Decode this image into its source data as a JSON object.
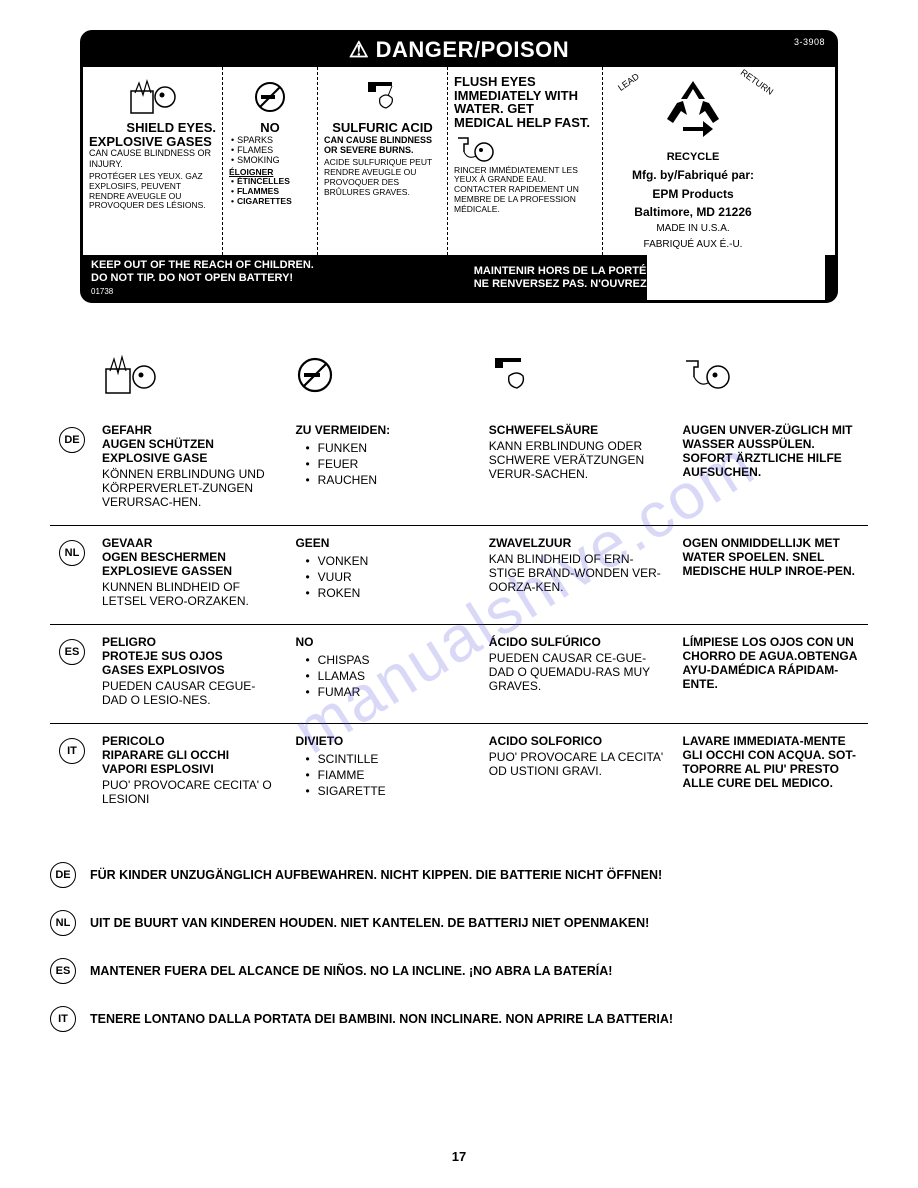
{
  "header": {
    "title": "⚠ DANGER/POISON",
    "code_top": "3-3908"
  },
  "label": {
    "col1": {
      "title1": "SHIELD EYES.",
      "title2": "EXPLOSIVE GASES",
      "en": "CAN CAUSE BLINDNESS OR INJURY.",
      "fr": "PROTÉGER LES YEUX. GAZ EXPLOSIFS, PEUVENT RENDRE AVEUGLE OU PROVOQUER DES LÉSIONS."
    },
    "col2": {
      "title": "NO",
      "items_en": [
        "SPARKS",
        "FLAMES",
        "SMOKING"
      ],
      "fr_head": "ÉLOIGNER",
      "items_fr": [
        "ÉTINCELLES",
        "FLAMMES",
        "CIGARETTES"
      ]
    },
    "col3": {
      "title": "SULFURIC ACID",
      "en": "CAN CAUSE BLINDNESS OR SEVERE BURNS.",
      "fr": "ACIDE SULFURIQUE PEUT RENDRE AVEUGLE OU PROVOQUER DES BRÛLURES GRAVES."
    },
    "col4": {
      "title": "FLUSH EYES IMMEDIATELY WITH WATER. GET MEDICAL HELP FAST.",
      "fr": "RINCER IMMÉDIATEMENT LES YEUX À GRANDE EAU. CONTACTER RAPIDEMENT UN MEMBRE DE LA PROFESSION MÉDICALE."
    },
    "col5": {
      "recycle": "RECYCLE",
      "lead": "LEAD",
      "return": "RETURN",
      "mfg1": "Mfg. by/Fabriqué par:",
      "mfg2": "EPM Products",
      "mfg3": "Baltimore, MD 21226",
      "made1": "MADE IN U.S.A.",
      "made2": "FABRIQUÉ AUX É.-U."
    },
    "footer": {
      "left1": "KEEP OUT OF THE REACH OF CHILDREN.",
      "left2": "DO NOT TIP. DO NOT OPEN BATTERY!",
      "right1": "MAINTENIR HORS DE LA PORTÉE D'ENFANTS.",
      "right2": "NE RENVERSEZ PAS. N'OUVREZ PAS LA BATTERIE!",
      "code": "01738"
    }
  },
  "trans": {
    "langs": [
      "DE",
      "NL",
      "ES",
      "IT"
    ],
    "rows": [
      {
        "lang": "DE",
        "c1_bold": [
          "GEFAHR",
          "AUGEN SCHÜTZEN",
          "EXPLOSIVE GASE"
        ],
        "c1_txt": "KÖNNEN ERBLINDUNG UND KÖRPERVERLET-ZUNGEN VERURSAC-HEN.",
        "c2_head": "ZU VERMEIDEN:",
        "c2_items": [
          "FUNKEN",
          "FEUER",
          "RAUCHEN"
        ],
        "c3_head": "SCHWEFELSÄURE",
        "c3_txt": "KANN ERBLINDUNG ODER SCHWERE VERÄTZUNGEN VERUR-SACHEN.",
        "c4_bold": "AUGEN UNVER-ZÜGLICH MIT WASSER AUSSPÜLEN. SOFORT ÄRZTLICHE HILFE AUFSUCHEN."
      },
      {
        "lang": "NL",
        "c1_bold": [
          "GEVAAR",
          "OGEN BESCHERMEN",
          "EXPLOSIEVE GASSEN"
        ],
        "c1_txt": "KUNNEN BLINDHEID OF LETSEL VERO-ORZAKEN.",
        "c2_head": "GEEN",
        "c2_items": [
          "VONKEN",
          "VUUR",
          "ROKEN"
        ],
        "c3_head": "ZWAVELZUUR",
        "c3_txt": "KAN BLINDHEID OF ERN-STIGE BRAND-WONDEN VER-OORZA-KEN.",
        "c4_bold": "OGEN ONMIDDELLIJK MET WATER SPOELEN. SNEL MEDISCHE HULP INROE-PEN."
      },
      {
        "lang": "ES",
        "c1_bold": [
          "PELIGRO",
          "PROTEJE SUS OJOS",
          "GASES EXPLOSIVOS"
        ],
        "c1_txt": "PUEDEN CAUSAR CEGUE-DAD O LESIO-NES.",
        "c2_head": "NO",
        "c2_items": [
          "CHISPAS",
          "LLAMAS",
          "FUMAR"
        ],
        "c3_head": "ÁCIDO SULFÚRICO",
        "c3_txt": "PUEDEN CAUSAR CE-GUE-DAD O QUEMADU-RAS MUY GRAVES.",
        "c4_bold": "LÍMPIESE LOS OJOS CON UN CHORRO DE AGUA.OBTENGA AYU-DAMÉDICA RÁPIDAM-ENTE."
      },
      {
        "lang": "IT",
        "c1_bold": [
          "PERICOLO",
          "RIPARARE GLI OCCHI",
          "VAPORI ESPLOSIVI"
        ],
        "c1_txt": "PUO' PROVOCARE CECITA' O LESIONI",
        "c2_head": "DIVIETO",
        "c2_items": [
          "SCINTILLE",
          "FIAMME",
          "SIGARETTE"
        ],
        "c3_head": "ACIDO SOLFORICO",
        "c3_txt": "PUO' PROVOCARE LA CECITA' OD USTIONI GRAVI.",
        "c4_bold": "LAVARE IMMEDIATA-MENTE GLI OCCHI CON ACQUA. SOT-TOPORRE AL PIU' PRESTO ALLE CURE DEL MEDICO."
      }
    ]
  },
  "bottom": [
    {
      "lang": "DE",
      "text": "FÜR KINDER UNZUGÄNGLICH AUFBEWAHREN. NICHT KIPPEN. DIE BATTERIE NICHT ÖFFNEN!"
    },
    {
      "lang": "NL",
      "text": "UIT DE BUURT VAN KINDEREN HOUDEN. NIET KANTELEN. DE BATTERIJ NIET OPENMAKEN!"
    },
    {
      "lang": "ES",
      "text": "MANTENER  FUERA DEL ALCANCE DE NIÑOS. NO LA INCLINE. ¡NO ABRA LA BATERÍA!"
    },
    {
      "lang": "IT",
      "text": "TENERE LONTANO DALLA PORTATA DEI BAMBINI. NON INCLINARE. NON APRIRE LA BATTERIA!"
    }
  ],
  "page": "17",
  "watermark": "manualshive.com"
}
